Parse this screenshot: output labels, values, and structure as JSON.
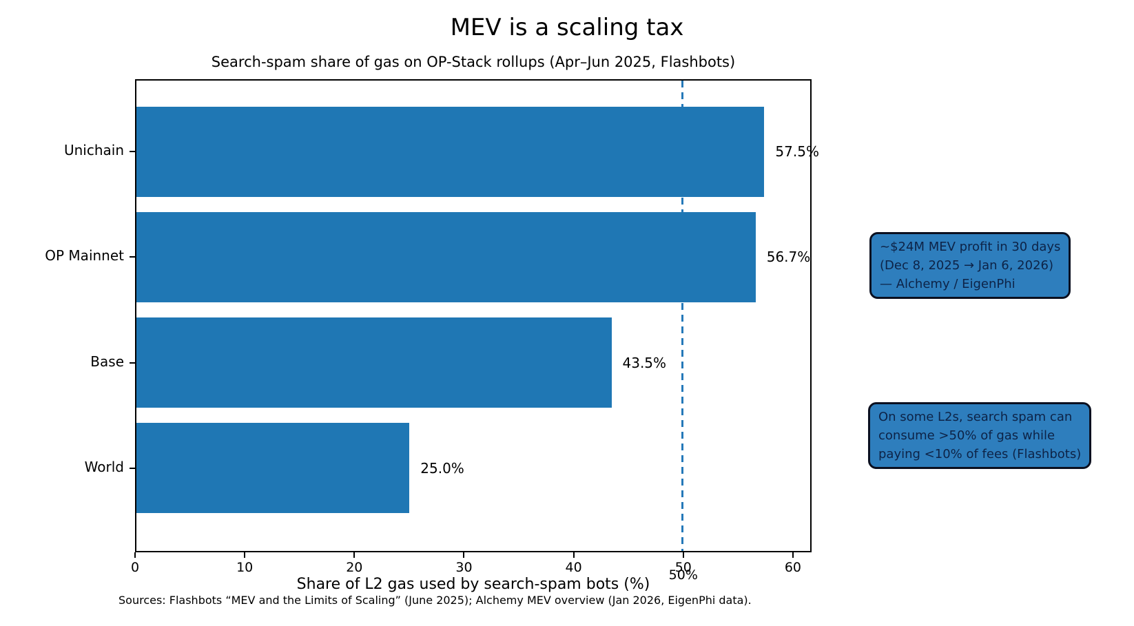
{
  "chart_data": {
    "type": "bar",
    "orientation": "horizontal",
    "title": "MEV is a scaling tax",
    "subtitle": "Search-spam share of gas on OP-Stack rollups (Apr–Jun 2025, Flashbots)",
    "categories": [
      "Unichain",
      "OP Mainnet",
      "Base",
      "World"
    ],
    "values": [
      57.5,
      56.7,
      43.5,
      25.0
    ],
    "value_labels": [
      "57.5%",
      "56.7%",
      "43.5%",
      "25.0%"
    ],
    "xlabel": "Share of L2 gas used by search-spam bots (%)",
    "ylabel": "",
    "xlim": [
      0,
      61.7
    ],
    "x_ticks": [
      0,
      10,
      20,
      30,
      40,
      50,
      60
    ],
    "grid": false,
    "legend": "none",
    "bar_color": "#1f77b4",
    "reference_line": {
      "x": 50,
      "label": "50%",
      "style": "dashed",
      "color": "#2579b9"
    },
    "annotations": [
      {
        "lines": [
          "~$24M MEV profit in 30 days",
          "(Dec 8, 2025 → Jan 6, 2026)",
          "— Alchemy / EigenPhi"
        ],
        "fill_color": "#2e7ebd",
        "border_color": "#0b1020",
        "text_color": "#0d2347"
      },
      {
        "lines": [
          "On some L2s, search spam can",
          "consume >50% of gas while",
          "paying <10% of fees (Flashbots)"
        ],
        "fill_color": "#2e7ebd",
        "border_color": "#0b1020",
        "text_color": "#0d2347"
      }
    ],
    "source_note": "Sources: Flashbots “MEV and the Limits of Scaling” (June 2025); Alchemy MEV overview (Jan 2026, EigenPhi data)."
  }
}
